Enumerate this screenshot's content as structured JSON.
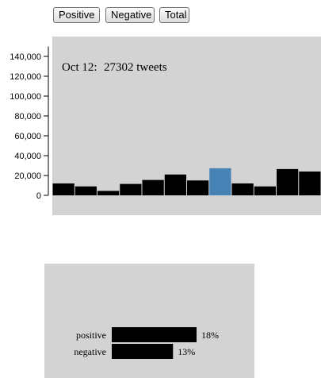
{
  "controls": {
    "positive_label": "Positive",
    "negative_label": "Negative",
    "total_label": "Total"
  },
  "colors": {
    "plot_background": "#d3d3d3",
    "bar": "#000000",
    "highlight_bar": "#4682b4",
    "panel_background": "#d3d3d3"
  },
  "tooltip": {
    "date": "Oct 12:",
    "count_text": "27302 tweets"
  },
  "chart_data": [
    {
      "type": "bar",
      "title": "",
      "xlabel": "",
      "ylabel": "",
      "ylim": [
        0,
        150000
      ],
      "yticks": [
        0,
        20000,
        40000,
        60000,
        80000,
        100000,
        120000,
        140000
      ],
      "ytick_labels": [
        "0",
        "20,000",
        "40,000",
        "60,000",
        "80,000",
        "100,000",
        "120,000",
        "140,000"
      ],
      "values": [
        12000,
        9000,
        4500,
        11500,
        15500,
        21000,
        15000,
        27302,
        12000,
        9000,
        26500,
        24000
      ],
      "highlight_index": 7,
      "grid": false
    },
    {
      "type": "bar",
      "orientation": "horizontal",
      "categories": [
        "positive",
        "negative"
      ],
      "values": [
        18,
        13
      ],
      "value_labels": [
        "18%",
        "13%"
      ]
    }
  ]
}
